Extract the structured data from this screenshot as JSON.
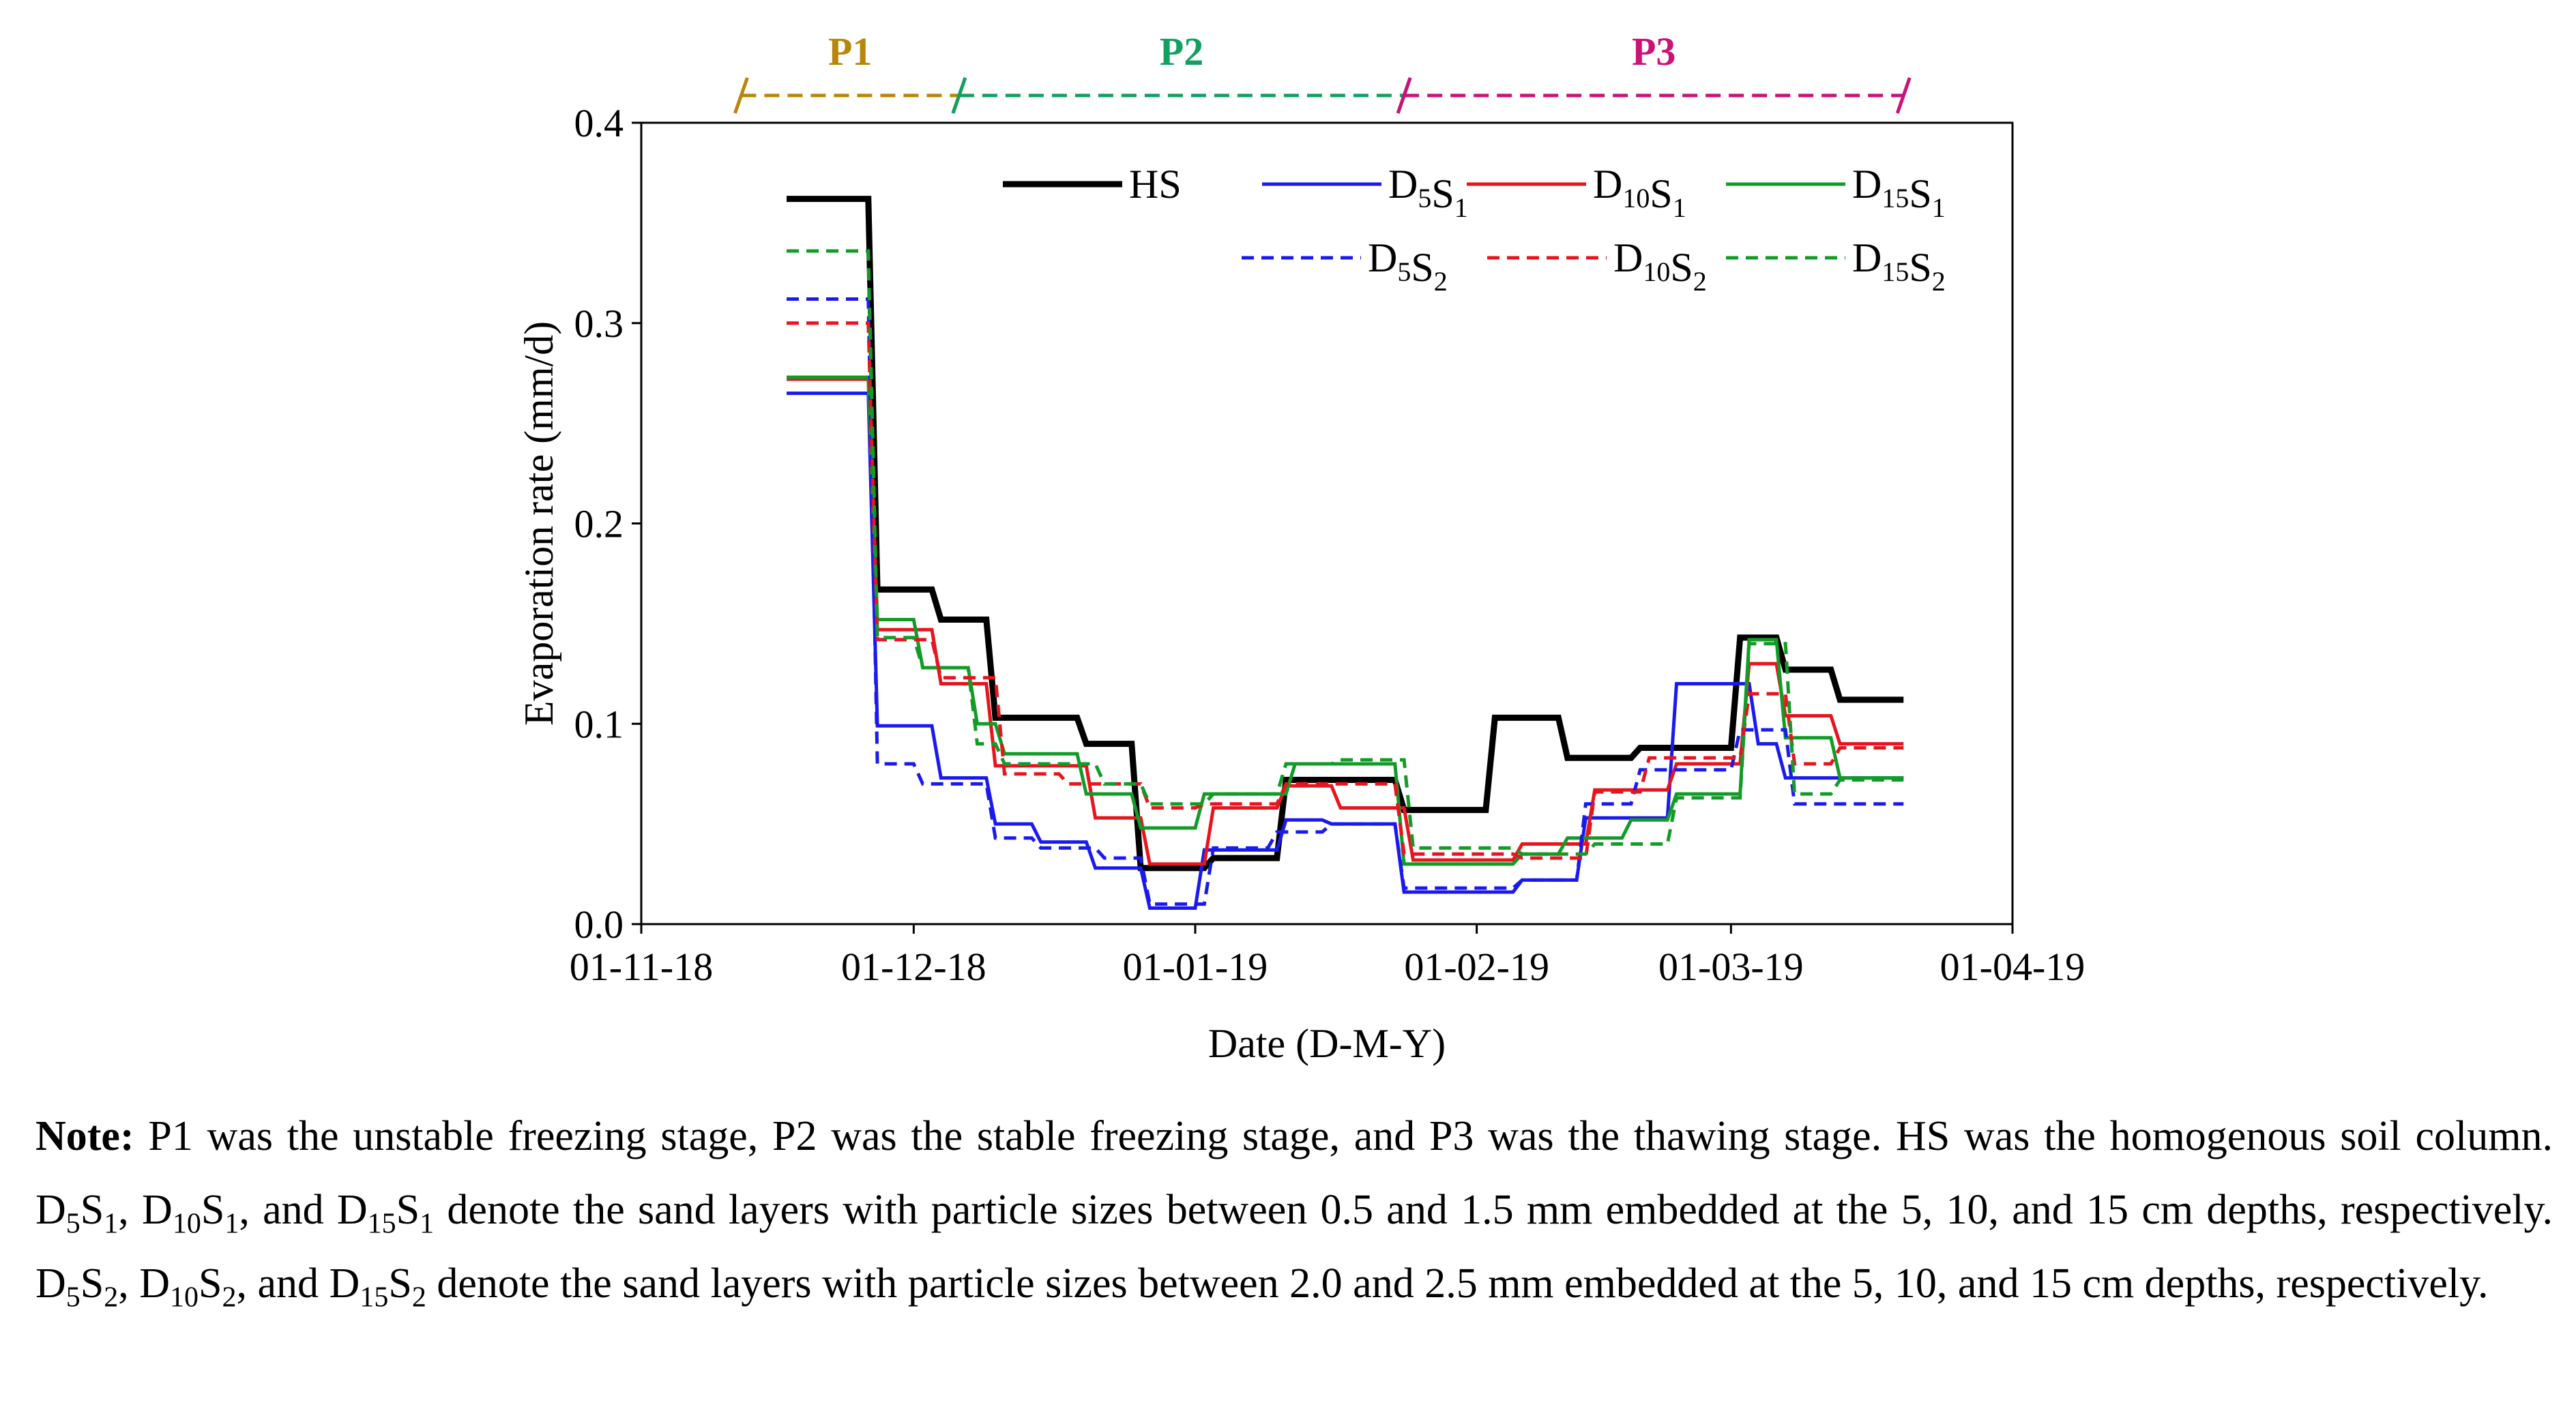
{
  "chart_data": {
    "type": "line",
    "title": "",
    "xlabel": "Date (D-M-Y)",
    "ylabel": "Evaporation rate (mm/d)",
    "x_unit": "days since 01-11-18",
    "xlim": [
      0,
      151
    ],
    "ylim": [
      0,
      0.4
    ],
    "xticks": [
      {
        "value": 0,
        "label": "01-11-18"
      },
      {
        "value": 30,
        "label": "01-12-18"
      },
      {
        "value": 61,
        "label": "01-01-19"
      },
      {
        "value": 92,
        "label": "01-02-19"
      },
      {
        "value": 120,
        "label": "01-03-19"
      },
      {
        "value": 151,
        "label": "01-04-19"
      }
    ],
    "yticks": [
      {
        "value": 0.0,
        "label": "0.0"
      },
      {
        "value": 0.1,
        "label": "0.1"
      },
      {
        "value": 0.2,
        "label": "0.2"
      },
      {
        "value": 0.3,
        "label": "0.3"
      },
      {
        "value": 0.4,
        "label": "0.4"
      }
    ],
    "periods": [
      {
        "name": "P1",
        "start": 11,
        "end": 35,
        "color": "#b8860b"
      },
      {
        "name": "P2",
        "start": 35,
        "end": 84,
        "color": "#12a060"
      },
      {
        "name": "P3",
        "start": 84,
        "end": 139,
        "color": "#cc1177"
      }
    ],
    "series": [
      {
        "name": "HS",
        "label": {
          "base": "HS",
          "sub": ""
        },
        "color": "#000000",
        "dash": false,
        "width": 9,
        "x": [
          16,
          25,
          26,
          32,
          33,
          38,
          39,
          48,
          49,
          54,
          55,
          62,
          63,
          70,
          71,
          83,
          84,
          93,
          94,
          101,
          102,
          109,
          110,
          120,
          121,
          125,
          126,
          131,
          132,
          139
        ],
        "y": [
          0.362,
          0.362,
          0.167,
          0.167,
          0.152,
          0.152,
          0.103,
          0.103,
          0.09,
          0.09,
          0.028,
          0.028,
          0.033,
          0.033,
          0.072,
          0.072,
          0.057,
          0.057,
          0.103,
          0.103,
          0.083,
          0.083,
          0.088,
          0.088,
          0.143,
          0.143,
          0.127,
          0.127,
          0.112,
          0.112
        ]
      },
      {
        "name": "D5S1",
        "label": {
          "base": "D",
          "sub": "5",
          "base2": "S",
          "sub2": "1"
        },
        "color": "#1a1aee",
        "dash": false,
        "width": 5,
        "x": [
          16,
          25,
          26,
          32,
          33,
          38,
          39,
          43,
          44,
          49,
          50,
          55,
          56,
          61,
          62,
          70,
          71,
          75,
          76,
          83,
          84,
          96,
          97,
          103,
          104,
          113,
          114,
          122,
          123,
          125,
          126,
          131,
          132,
          139
        ],
        "y": [
          0.265,
          0.265,
          0.099,
          0.099,
          0.073,
          0.073,
          0.05,
          0.05,
          0.041,
          0.041,
          0.028,
          0.028,
          0.008,
          0.008,
          0.037,
          0.037,
          0.052,
          0.052,
          0.05,
          0.05,
          0.016,
          0.016,
          0.022,
          0.022,
          0.053,
          0.053,
          0.12,
          0.12,
          0.09,
          0.09,
          0.073,
          0.073,
          0.073,
          0.073
        ]
      },
      {
        "name": "D10S1",
        "label": {
          "base": "D",
          "sub": "10",
          "base2": "S",
          "sub2": "1"
        },
        "color": "#e8141e",
        "dash": false,
        "width": 5,
        "x": [
          16,
          25,
          26,
          32,
          33,
          38,
          39,
          49,
          50,
          55,
          56,
          62,
          63,
          70,
          71,
          76,
          77,
          84,
          85,
          96,
          97,
          104,
          105,
          113,
          114,
          116,
          117,
          121,
          122,
          125,
          126,
          131,
          132,
          139
        ],
        "y": [
          0.272,
          0.272,
          0.147,
          0.147,
          0.12,
          0.12,
          0.079,
          0.079,
          0.053,
          0.053,
          0.03,
          0.03,
          0.058,
          0.058,
          0.069,
          0.069,
          0.058,
          0.058,
          0.032,
          0.032,
          0.04,
          0.04,
          0.067,
          0.067,
          0.08,
          0.08,
          0.08,
          0.08,
          0.13,
          0.13,
          0.104,
          0.104,
          0.09,
          0.09
        ]
      },
      {
        "name": "D15S1",
        "label": {
          "base": "D",
          "sub": "15",
          "base2": "S",
          "sub2": "1"
        },
        "color": "#139b27",
        "dash": false,
        "width": 5,
        "x": [
          16,
          25,
          26,
          30,
          31,
          36,
          37,
          39,
          40,
          48,
          49,
          54,
          55,
          61,
          62,
          71,
          72,
          83,
          84,
          96,
          97,
          101,
          102,
          108,
          109,
          113,
          114,
          121,
          122,
          125,
          126,
          131,
          132,
          139
        ],
        "y": [
          0.273,
          0.273,
          0.152,
          0.152,
          0.128,
          0.128,
          0.1,
          0.1,
          0.085,
          0.085,
          0.065,
          0.065,
          0.048,
          0.048,
          0.065,
          0.065,
          0.08,
          0.08,
          0.03,
          0.03,
          0.035,
          0.035,
          0.043,
          0.043,
          0.052,
          0.052,
          0.065,
          0.065,
          0.142,
          0.142,
          0.093,
          0.093,
          0.073,
          0.073
        ]
      },
      {
        "name": "D5S2",
        "label": {
          "base": "D",
          "sub": "5",
          "base2": "S",
          "sub2": "2"
        },
        "color": "#1a1aee",
        "dash": true,
        "width": 5,
        "x": [
          16,
          25,
          26,
          30,
          31,
          38,
          39,
          43,
          44,
          50,
          51,
          55,
          56,
          62,
          63,
          69,
          70,
          75,
          76,
          83,
          84,
          96,
          97,
          103,
          104,
          109,
          110,
          120,
          121,
          126,
          127,
          131,
          132,
          139
        ],
        "y": [
          0.312,
          0.312,
          0.08,
          0.08,
          0.07,
          0.07,
          0.043,
          0.043,
          0.038,
          0.038,
          0.033,
          0.033,
          0.01,
          0.01,
          0.038,
          0.038,
          0.046,
          0.046,
          0.05,
          0.05,
          0.018,
          0.018,
          0.022,
          0.022,
          0.06,
          0.06,
          0.077,
          0.077,
          0.097,
          0.097,
          0.06,
          0.06,
          0.06,
          0.06
        ]
      },
      {
        "name": "D10S2",
        "label": {
          "base": "D",
          "sub": "10",
          "base2": "S",
          "sub2": "2"
        },
        "color": "#e8141e",
        "dash": true,
        "width": 5,
        "x": [
          16,
          25,
          26,
          32,
          33,
          39,
          40,
          46,
          47,
          55,
          56,
          61,
          62,
          70,
          71,
          83,
          84,
          96,
          97,
          104,
          105,
          110,
          111,
          121,
          122,
          126,
          127,
          131,
          132,
          139
        ],
        "y": [
          0.3,
          0.3,
          0.142,
          0.142,
          0.123,
          0.123,
          0.075,
          0.075,
          0.07,
          0.07,
          0.058,
          0.058,
          0.06,
          0.06,
          0.07,
          0.07,
          0.035,
          0.035,
          0.033,
          0.033,
          0.066,
          0.066,
          0.083,
          0.083,
          0.115,
          0.115,
          0.08,
          0.08,
          0.088,
          0.088
        ]
      },
      {
        "name": "D15S2",
        "label": {
          "base": "D",
          "sub": "15",
          "base2": "S",
          "sub2": "2"
        },
        "color": "#139b27",
        "dash": true,
        "width": 5,
        "x": [
          16,
          25,
          26,
          30,
          31,
          36,
          37,
          39,
          40,
          50,
          51,
          55,
          56,
          62,
          63,
          70,
          71,
          76,
          77,
          84,
          85,
          96,
          97,
          104,
          105,
          113,
          114,
          121,
          122,
          126,
          127,
          131,
          132,
          139
        ],
        "y": [
          0.336,
          0.336,
          0.143,
          0.143,
          0.128,
          0.128,
          0.09,
          0.09,
          0.08,
          0.08,
          0.07,
          0.07,
          0.06,
          0.06,
          0.065,
          0.065,
          0.08,
          0.08,
          0.082,
          0.082,
          0.038,
          0.038,
          0.035,
          0.035,
          0.04,
          0.04,
          0.063,
          0.063,
          0.14,
          0.14,
          0.065,
          0.065,
          0.072,
          0.072
        ]
      }
    ]
  },
  "note": {
    "label": "Note:",
    "parts": [
      " P1 was the unstable freezing stage, P2 was the stable freezing stage, and P3 was the thawing stage. HS was the homogenous soil column. D",
      {
        "sub": "5"
      },
      "S",
      {
        "sub": "1"
      },
      ", D",
      {
        "sub": "10"
      },
      "S",
      {
        "sub": "1"
      },
      ", and D",
      {
        "sub": "15"
      },
      "S",
      {
        "sub": "1"
      },
      " denote the sand layers with particle sizes between 0.5 and 1.5 mm embedded at the 5, 10, and 15 cm depths, respectively. D",
      {
        "sub": "5"
      },
      "S",
      {
        "sub": "2"
      },
      ", D",
      {
        "sub": "10"
      },
      "S",
      {
        "sub": "2"
      },
      ", and D",
      {
        "sub": "15"
      },
      "S",
      {
        "sub": "2"
      },
      " denote the sand layers with particle sizes between 2.0 and 2.5 mm embedded at the 5, 10, and 15 cm depths, respectively."
    ]
  }
}
